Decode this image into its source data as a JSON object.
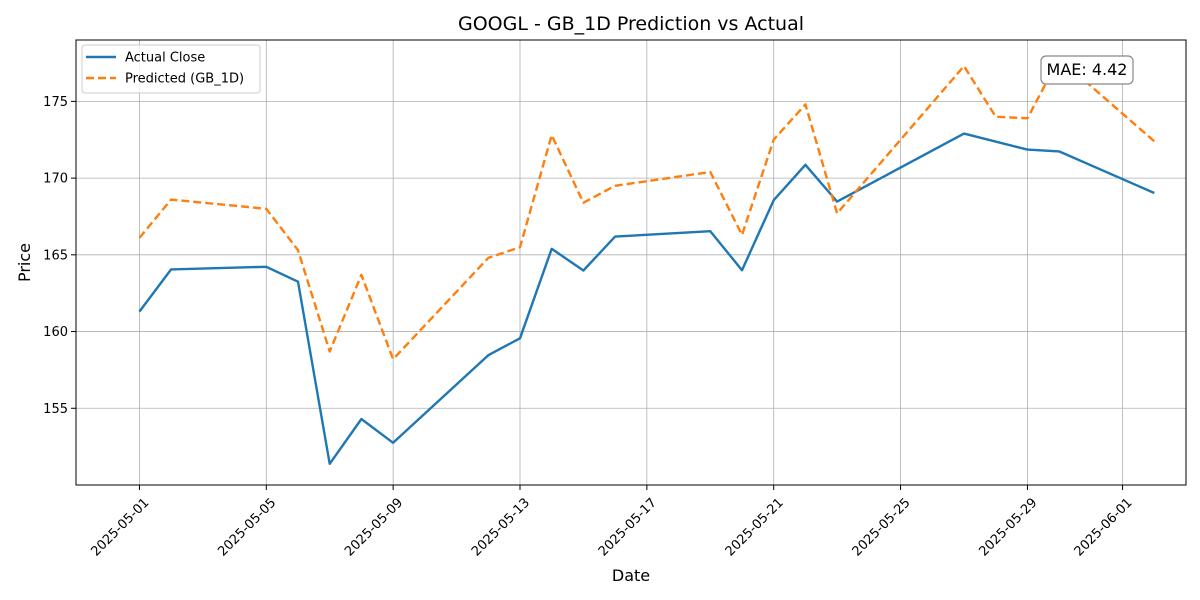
{
  "chart_data": {
    "type": "line",
    "title": "GOOGL - GB_1D Prediction vs Actual",
    "xlabel": "Date",
    "ylabel": "Price",
    "x_ticks": [
      "2025-05-01",
      "2025-05-05",
      "2025-05-09",
      "2025-05-13",
      "2025-05-17",
      "2025-05-21",
      "2025-05-25",
      "2025-05-29",
      "2025-06-01"
    ],
    "y_ticks": [
      155,
      160,
      165,
      170,
      175
    ],
    "xlim": [
      "2025-04-29",
      "2025-06-03"
    ],
    "ylim": [
      150.0,
      179.0
    ],
    "grid": true,
    "legend_position": "top-left",
    "annotation": "MAE: 4.42",
    "series": [
      {
        "name": "Actual Close",
        "color": "#1f77b4",
        "style": "solid",
        "points": [
          [
            "2025-05-01",
            161.3
          ],
          [
            "2025-05-02",
            164.05
          ],
          [
            "2025-05-05",
            164.22
          ],
          [
            "2025-05-06",
            163.25
          ],
          [
            "2025-05-07",
            151.38
          ],
          [
            "2025-05-08",
            154.3
          ],
          [
            "2025-05-09",
            152.75
          ],
          [
            "2025-05-12",
            158.46
          ],
          [
            "2025-05-13",
            159.56
          ],
          [
            "2025-05-14",
            165.39
          ],
          [
            "2025-05-15",
            163.98
          ],
          [
            "2025-05-16",
            166.19
          ],
          [
            "2025-05-19",
            166.54
          ],
          [
            "2025-05-20",
            164.0
          ],
          [
            "2025-05-21",
            168.56
          ],
          [
            "2025-05-22",
            170.87
          ],
          [
            "2025-05-23",
            168.47
          ],
          [
            "2025-05-27",
            172.9
          ],
          [
            "2025-05-29",
            171.86
          ],
          [
            "2025-05-30",
            171.74
          ],
          [
            "2025-06-02",
            169.03
          ]
        ]
      },
      {
        "name": "Predicted (GB_1D)",
        "color": "#ff7f0e",
        "style": "dashed",
        "points": [
          [
            "2025-05-01",
            166.1
          ],
          [
            "2025-05-02",
            168.6
          ],
          [
            "2025-05-05",
            168.0
          ],
          [
            "2025-05-06",
            165.3
          ],
          [
            "2025-05-07",
            158.7
          ],
          [
            "2025-05-08",
            163.7
          ],
          [
            "2025-05-09",
            158.2
          ],
          [
            "2025-05-12",
            164.8
          ],
          [
            "2025-05-13",
            165.5
          ],
          [
            "2025-05-14",
            172.8
          ],
          [
            "2025-05-15",
            168.4
          ],
          [
            "2025-05-16",
            169.5
          ],
          [
            "2025-05-19",
            170.4
          ],
          [
            "2025-05-20",
            166.3
          ],
          [
            "2025-05-21",
            172.5
          ],
          [
            "2025-05-22",
            174.8
          ],
          [
            "2025-05-23",
            167.7
          ],
          [
            "2025-05-27",
            177.3
          ],
          [
            "2025-05-28",
            174.0
          ],
          [
            "2025-05-29",
            173.9
          ],
          [
            "2025-05-30",
            177.8
          ],
          [
            "2025-06-02",
            172.4
          ]
        ]
      }
    ]
  }
}
